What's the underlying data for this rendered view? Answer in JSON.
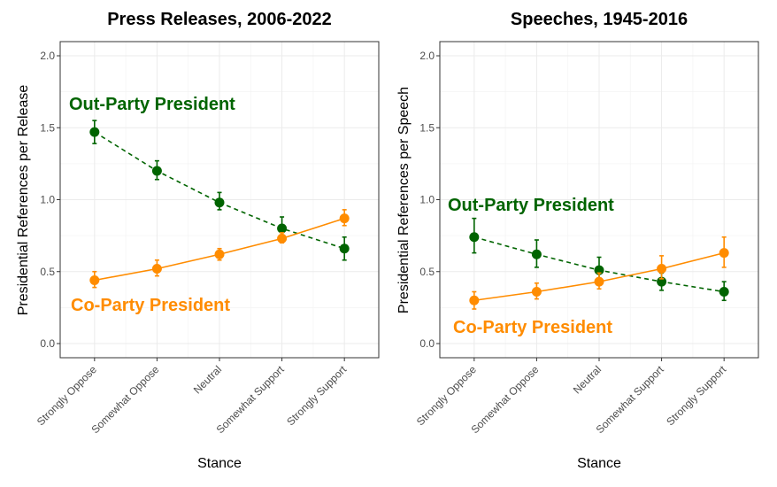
{
  "chart_data": [
    {
      "type": "line",
      "title": "Press Releases, 2006-2022",
      "xlabel": "Stance",
      "ylabel": "Presidential References per Release",
      "categories": [
        "Strongly Oppose",
        "Somewhat Oppose",
        "Neutral",
        "Somewhat Support",
        "Strongly Support"
      ],
      "ylim": [
        0,
        2
      ],
      "yticks": [
        "0.0",
        "0.5",
        "1.0",
        "1.5",
        "2.0"
      ],
      "grid": true,
      "series": [
        {
          "name": "Out-Party President",
          "color": "#006400",
          "line_style": "dashed",
          "values": [
            1.47,
            1.2,
            0.98,
            0.8,
            0.66
          ],
          "ci_low": [
            1.39,
            1.14,
            0.93,
            0.75,
            0.58
          ],
          "ci_high": [
            1.55,
            1.27,
            1.05,
            0.88,
            0.74
          ]
        },
        {
          "name": "Co-Party President",
          "color": "#FF8C00",
          "line_style": "solid",
          "values": [
            0.44,
            0.52,
            0.62,
            0.73,
            0.87
          ],
          "ci_low": [
            0.39,
            0.47,
            0.58,
            0.7,
            0.82
          ],
          "ci_high": [
            0.5,
            0.58,
            0.66,
            0.77,
            0.93
          ]
        }
      ],
      "annotations": [
        {
          "text": "Out-Party President",
          "color": "#006400"
        },
        {
          "text": "Co-Party President",
          "color": "#FF8C00"
        }
      ]
    },
    {
      "type": "line",
      "title": "Speeches, 1945-2016",
      "xlabel": "Stance",
      "ylabel": "Presidential References per Speech",
      "categories": [
        "Strongly Oppose",
        "Somewhat Oppose",
        "Neutral",
        "Somewhat Support",
        "Strongly Support"
      ],
      "ylim": [
        0,
        2
      ],
      "yticks": [
        "0.0",
        "0.5",
        "1.0",
        "1.5",
        "2.0"
      ],
      "grid": true,
      "series": [
        {
          "name": "Out-Party President",
          "color": "#006400",
          "line_style": "dashed",
          "values": [
            0.74,
            0.62,
            0.51,
            0.43,
            0.36
          ],
          "ci_low": [
            0.63,
            0.53,
            0.44,
            0.37,
            0.3
          ],
          "ci_high": [
            0.87,
            0.72,
            0.6,
            0.49,
            0.43
          ]
        },
        {
          "name": "Co-Party President",
          "color": "#FF8C00",
          "line_style": "solid",
          "values": [
            0.3,
            0.36,
            0.43,
            0.52,
            0.63
          ],
          "ci_low": [
            0.24,
            0.31,
            0.38,
            0.45,
            0.53
          ],
          "ci_high": [
            0.36,
            0.42,
            0.49,
            0.61,
            0.74
          ]
        }
      ],
      "annotations": [
        {
          "text": "Out-Party President",
          "color": "#006400"
        },
        {
          "text": "Co-Party President",
          "color": "#FF8C00"
        }
      ]
    }
  ]
}
